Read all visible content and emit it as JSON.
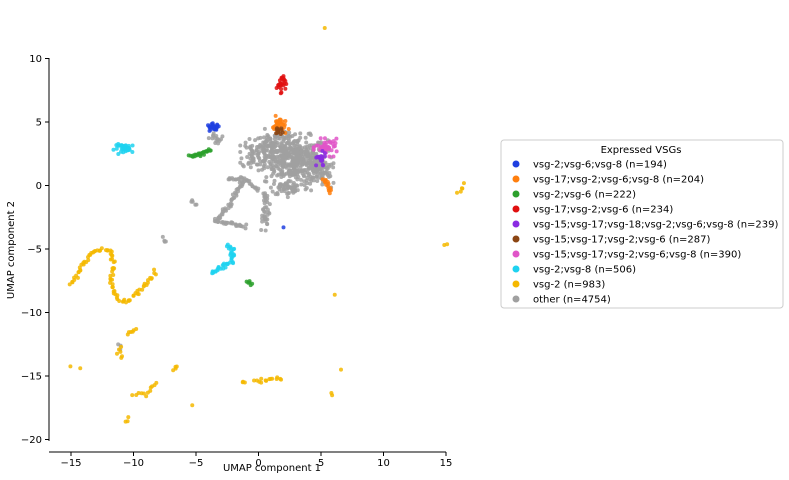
{
  "chart_data": {
    "type": "scatter",
    "xlabel": "UMAP component 1",
    "ylabel": "UMAP component 2",
    "xlim": [
      -16.5,
      15
    ],
    "ylim": [
      -20,
      10
    ],
    "xticks": [
      -15,
      -10,
      -5,
      0,
      5,
      10,
      15
    ],
    "yticks": [
      10,
      5,
      0,
      -5,
      -10,
      -15,
      -20
    ],
    "grid": false,
    "legend": {
      "title": "Expressed VSGs",
      "placement": "right",
      "entries": [
        {
          "label": "vsg-2;vsg-6;vsg-8 (n=194)",
          "color": "#1f3fe0"
        },
        {
          "label": "vsg-17;vsg-2;vsg-6;vsg-8 (n=204)",
          "color": "#ff7f0e"
        },
        {
          "label": "vsg-2;vsg-6 (n=222)",
          "color": "#2ca02c"
        },
        {
          "label": "vsg-17;vsg-2;vsg-6 (n=234)",
          "color": "#e01010"
        },
        {
          "label": "vsg-15;vsg-17;vsg-18;vsg-2;vsg-6;vsg-8 (n=239)",
          "color": "#8a2be2"
        },
        {
          "label": "vsg-15;vsg-17;vsg-2;vsg-6 (n=287)",
          "color": "#8b4513"
        },
        {
          "label": "vsg-15;vsg-17;vsg-2;vsg-6;vsg-8 (n=390)",
          "color": "#e055c8"
        },
        {
          "label": "vsg-2;vsg-8 (n=506)",
          "color": "#1ed2f0"
        },
        {
          "label": "vsg-2 (n=983)",
          "color": "#f5b800"
        },
        {
          "label": "other (n=4754)",
          "color": "#a0a0a0"
        }
      ]
    },
    "series": [
      {
        "name": "other (n=4754)",
        "color": "#a0a0a0",
        "clusters": [
          {
            "type": "blob",
            "cx": 3.0,
            "cy": 2.0,
            "rx": 2.5,
            "ry": 1.8,
            "n": 420
          },
          {
            "type": "blob",
            "cx": 1.2,
            "cy": 3.0,
            "rx": 1.6,
            "ry": 1.3,
            "n": 120
          },
          {
            "type": "blob",
            "cx": 4.8,
            "cy": 1.2,
            "rx": 1.0,
            "ry": 1.0,
            "n": 80
          },
          {
            "type": "blob",
            "cx": 2.5,
            "cy": -0.2,
            "rx": 1.6,
            "ry": 0.6,
            "n": 60
          },
          {
            "type": "blob",
            "cx": -0.5,
            "cy": 2.5,
            "rx": 0.8,
            "ry": 1.2,
            "n": 40
          },
          {
            "type": "blob",
            "cx": 0.5,
            "cy": -1.8,
            "rx": 0.4,
            "ry": 1.8,
            "n": 40
          },
          {
            "type": "line",
            "points": [
              [
                -1.2,
                0.5
              ],
              [
                -2.5,
                -1.8
              ],
              [
                -3.5,
                -2.8
              ],
              [
                -1.0,
                -3.2
              ]
            ],
            "n": 70
          },
          {
            "type": "line",
            "points": [
              [
                -2.5,
                0.5
              ],
              [
                -1.0,
                0.5
              ],
              [
                0.0,
                -0.5
              ]
            ],
            "n": 25
          },
          {
            "type": "blob",
            "cx": -3.3,
            "cy": 3.7,
            "rx": 0.6,
            "ry": 0.5,
            "n": 15
          },
          {
            "type": "line",
            "points": [
              [
                -5.4,
                -1.2
              ],
              [
                -5.0,
                -1.6
              ]
            ],
            "n": 5
          },
          {
            "type": "line",
            "points": [
              [
                -7.6,
                -4.2
              ],
              [
                -7.4,
                -4.5
              ]
            ],
            "n": 4
          },
          {
            "type": "line",
            "points": [
              [
                -11.2,
                -12.5
              ],
              [
                -11.0,
                -13.0
              ]
            ],
            "n": 3
          }
        ]
      },
      {
        "name": "vsg-2 (n=983)",
        "color": "#f5b800",
        "clusters": [
          {
            "type": "line",
            "points": [
              [
                -15.0,
                -7.8
              ],
              [
                -14.5,
                -7.0
              ],
              [
                -14.0,
                -6.2
              ],
              [
                -13.5,
                -5.5
              ],
              [
                -13.0,
                -5.1
              ],
              [
                -12.2,
                -5.0
              ],
              [
                -11.7,
                -5.3
              ],
              [
                -11.6,
                -6.0
              ],
              [
                -11.8,
                -7.0
              ],
              [
                -11.7,
                -8.0
              ],
              [
                -11.4,
                -8.7
              ],
              [
                -11.0,
                -9.1
              ],
              [
                -10.3,
                -9.0
              ],
              [
                -9.5,
                -8.3
              ],
              [
                -8.8,
                -7.5
              ],
              [
                -8.3,
                -6.8
              ]
            ],
            "n": 90
          },
          {
            "type": "line",
            "points": [
              [
                -10.5,
                -11.7
              ],
              [
                -9.8,
                -11.3
              ]
            ],
            "n": 6
          },
          {
            "type": "line",
            "points": [
              [
                -11.2,
                -12.8
              ],
              [
                -11.0,
                -13.6
              ]
            ],
            "n": 6
          },
          {
            "type": "line",
            "points": [
              [
                -10.0,
                -16.5
              ],
              [
                -9.0,
                -16.4
              ],
              [
                -8.2,
                -15.5
              ]
            ],
            "n": 12
          },
          {
            "type": "line",
            "points": [
              [
                -10.6,
                -18.6
              ],
              [
                -10.4,
                -18.2
              ]
            ],
            "n": 3
          },
          {
            "type": "line",
            "points": [
              [
                -6.8,
                -14.6
              ],
              [
                -6.5,
                -14.0
              ]
            ],
            "n": 4
          },
          {
            "type": "line",
            "points": [
              [
                -1.2,
                -15.4
              ],
              [
                -1.0,
                -15.5
              ]
            ],
            "n": 3
          },
          {
            "type": "line",
            "points": [
              [
                -0.3,
                -15.5
              ],
              [
                1.0,
                -15.3
              ],
              [
                1.8,
                -15.2
              ]
            ],
            "n": 14
          },
          {
            "type": "line",
            "points": [
              [
                -15.1,
                -14.2
              ],
              [
                -14.4,
                -14.3
              ]
            ],
            "n": 2
          },
          {
            "type": "line",
            "points": [
              [
                15.9,
                -0.7
              ],
              [
                16.5,
                0.2
              ]
            ],
            "n": 5
          },
          {
            "type": "line",
            "points": [
              [
                14.8,
                -4.7
              ],
              [
                15.0,
                -4.5
              ]
            ],
            "n": 2
          },
          {
            "type": "line",
            "points": [
              [
                5.9,
                -16.3
              ],
              [
                6.0,
                -16.5
              ]
            ],
            "n": 2
          },
          {
            "type": "line",
            "points": [
              [
                -5.3,
                -17.3
              ],
              [
                -5.3,
                -17.3
              ]
            ],
            "n": 1
          },
          {
            "type": "line",
            "points": [
              [
                6.1,
                -8.6
              ],
              [
                6.1,
                -8.6
              ]
            ],
            "n": 1
          },
          {
            "type": "line",
            "points": [
              [
                6.6,
                -14.5
              ],
              [
                6.6,
                -14.5
              ]
            ],
            "n": 1
          },
          {
            "type": "line",
            "points": [
              [
                5.3,
                12.4
              ],
              [
                5.3,
                12.4
              ]
            ],
            "n": 1
          }
        ]
      },
      {
        "name": "vsg-2;vsg-8 (n=506)",
        "color": "#1ed2f0",
        "clusters": [
          {
            "type": "blob",
            "cx": -10.6,
            "cy": 2.9,
            "rx": 0.9,
            "ry": 0.35,
            "n": 35
          },
          {
            "type": "line",
            "points": [
              [
                -3.7,
                -6.9
              ],
              [
                -3.0,
                -6.5
              ],
              [
                -2.2,
                -6.0
              ],
              [
                -2.0,
                -5.0
              ],
              [
                -2.5,
                -4.8
              ]
            ],
            "n": 40
          }
        ]
      },
      {
        "name": "vsg-2;vsg-6;vsg-8 (n=194)",
        "color": "#1f3fe0",
        "clusters": [
          {
            "type": "blob",
            "cx": -3.6,
            "cy": 4.6,
            "rx": 0.5,
            "ry": 0.25,
            "n": 25
          },
          {
            "type": "line",
            "points": [
              [
                2.0,
                -3.3
              ],
              [
                2.0,
                -3.3
              ]
            ],
            "n": 1
          }
        ]
      },
      {
        "name": "vsg-2;vsg-6 (n=222)",
        "color": "#2ca02c",
        "clusters": [
          {
            "type": "line",
            "points": [
              [
                -5.5,
                2.3
              ],
              [
                -4.5,
                2.5
              ],
              [
                -3.8,
                2.8
              ]
            ],
            "n": 25
          },
          {
            "type": "line",
            "points": [
              [
                -0.9,
                -7.6
              ],
              [
                -0.6,
                -7.8
              ]
            ],
            "n": 6
          }
        ]
      },
      {
        "name": "vsg-17;vsg-2;vsg-6 (n=234)",
        "color": "#e01010",
        "clusters": [
          {
            "type": "blob",
            "cx": 1.8,
            "cy": 8.1,
            "rx": 0.35,
            "ry": 0.7,
            "n": 25
          }
        ]
      },
      {
        "name": "vsg-17;vsg-2;vsg-6;vsg-8 (n=204)",
        "color": "#ff7f0e",
        "clusters": [
          {
            "type": "blob",
            "cx": 1.7,
            "cy": 4.7,
            "rx": 0.6,
            "ry": 0.7,
            "n": 30
          },
          {
            "type": "line",
            "points": [
              [
                5.2,
                0.5
              ],
              [
                5.8,
                -0.5
              ]
            ],
            "n": 15
          }
        ]
      },
      {
        "name": "vsg-15;vsg-17;vsg-2;vsg-6 (n=287)",
        "color": "#8b4513",
        "clusters": [
          {
            "type": "blob",
            "cx": 1.6,
            "cy": 4.3,
            "rx": 0.4,
            "ry": 0.4,
            "n": 12
          }
        ]
      },
      {
        "name": "vsg-15;vsg-17;vsg-2;vsg-6;vsg-8 (n=390)",
        "color": "#e055c8",
        "clusters": [
          {
            "type": "blob",
            "cx": 5.5,
            "cy": 3.0,
            "rx": 0.9,
            "ry": 0.6,
            "n": 45
          }
        ]
      },
      {
        "name": "vsg-15;vsg-17;vsg-18;vsg-2;vsg-6;vsg-8 (n=239)",
        "color": "#8a2be2",
        "clusters": [
          {
            "type": "blob",
            "cx": 4.9,
            "cy": 2.0,
            "rx": 0.5,
            "ry": 0.6,
            "n": 20
          }
        ]
      }
    ]
  }
}
